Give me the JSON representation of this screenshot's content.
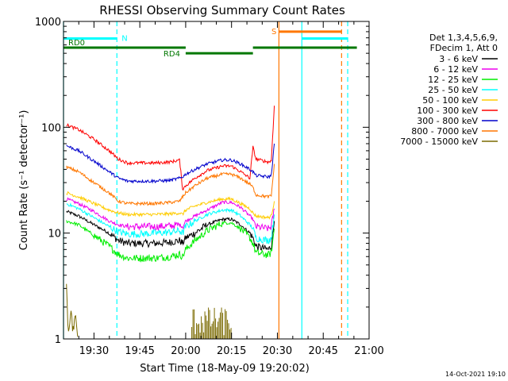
{
  "chart_data": {
    "type": "line",
    "title": "RHESSI Observing Summary Count Rates",
    "xlabel": "Start Time (18-May-09 19:20:02)",
    "ylabel": "Count Rate (s⁻¹ detector⁻¹)",
    "yscale": "log",
    "ylim": [
      1,
      1000
    ],
    "xlim": [
      "19:20:02",
      "21:00"
    ],
    "x_ticks": [
      "19:30",
      "19:45",
      "20:00",
      "20:15",
      "20:30",
      "20:45",
      "21:00"
    ],
    "y_ticks": [
      "1",
      "10",
      "100",
      "1000"
    ],
    "legend_header": [
      "Det 1,3,4,5,6,9,",
      "FDecim 1, Att 0"
    ],
    "timestamp": "14-Oct-2021 19:10",
    "series": [
      {
        "name": "3 - 6 keV",
        "color": "#000000",
        "points": [
          [
            "19:21",
            16
          ],
          [
            "19:25",
            14.5
          ],
          [
            "19:30",
            12
          ],
          [
            "19:35",
            10
          ],
          [
            "19:38",
            8.5
          ],
          [
            "19:41",
            8
          ],
          [
            "19:45",
            8
          ],
          [
            "19:50",
            8
          ],
          [
            "19:55",
            8.2
          ],
          [
            "19:58",
            8.5
          ],
          [
            "19:59",
            8
          ],
          [
            "20:00",
            9
          ],
          [
            "20:03",
            10
          ],
          [
            "20:07",
            12
          ],
          [
            "20:12",
            13.5
          ],
          [
            "20:15",
            13.5
          ],
          [
            "20:18",
            12
          ],
          [
            "20:21",
            10
          ],
          [
            "20:22",
            9
          ],
          [
            "20:23",
            7.5
          ],
          [
            "20:27",
            7
          ],
          [
            "20:28",
            7.5
          ],
          [
            "20:29",
            13
          ]
        ]
      },
      {
        "name": "6 - 12 keV",
        "color": "#ee00ee",
        "points": [
          [
            "19:21",
            21
          ],
          [
            "19:25",
            19
          ],
          [
            "19:30",
            16
          ],
          [
            "19:35",
            13
          ],
          [
            "19:38",
            12
          ],
          [
            "19:41",
            11.5
          ],
          [
            "19:45",
            11.5
          ],
          [
            "19:50",
            11.5
          ],
          [
            "19:55",
            11.7
          ],
          [
            "19:58",
            12
          ],
          [
            "19:59",
            11.5
          ],
          [
            "20:00",
            13
          ],
          [
            "20:03",
            14.5
          ],
          [
            "20:07",
            16.5
          ],
          [
            "20:12",
            19.5
          ],
          [
            "20:15",
            19.5
          ],
          [
            "20:18",
            17.5
          ],
          [
            "20:21",
            14.5
          ],
          [
            "20:22",
            13.5
          ],
          [
            "20:23",
            11.5
          ],
          [
            "20:27",
            11
          ],
          [
            "20:28",
            11.5
          ],
          [
            "20:29",
            17
          ]
        ]
      },
      {
        "name": "12 - 25 keV",
        "color": "#00ee00",
        "points": [
          [
            "19:21",
            13
          ],
          [
            "19:25",
            12
          ],
          [
            "19:30",
            9.5
          ],
          [
            "19:35",
            7.5
          ],
          [
            "19:38",
            6.3
          ],
          [
            "19:41",
            5.8
          ],
          [
            "19:45",
            5.8
          ],
          [
            "19:50",
            5.8
          ],
          [
            "19:55",
            6
          ],
          [
            "19:58",
            6.3
          ],
          [
            "19:59",
            6
          ],
          [
            "20:00",
            7
          ],
          [
            "20:03",
            8.5
          ],
          [
            "20:07",
            10.5
          ],
          [
            "20:12",
            12.5
          ],
          [
            "20:15",
            12.5
          ],
          [
            "20:18",
            11
          ],
          [
            "20:21",
            9
          ],
          [
            "20:22",
            8
          ],
          [
            "20:23",
            6.5
          ],
          [
            "20:27",
            6.2
          ],
          [
            "20:28",
            6.5
          ],
          [
            "20:29",
            11
          ]
        ]
      },
      {
        "name": "25 - 50 keV",
        "color": "#00ffff",
        "points": [
          [
            "19:21",
            19
          ],
          [
            "19:25",
            17
          ],
          [
            "19:30",
            14
          ],
          [
            "19:35",
            11.5
          ],
          [
            "19:38",
            10.3
          ],
          [
            "19:41",
            9.8
          ],
          [
            "19:45",
            9.8
          ],
          [
            "19:50",
            10
          ],
          [
            "19:55",
            10.2
          ],
          [
            "19:58",
            10.5
          ],
          [
            "19:59",
            10
          ],
          [
            "20:00",
            11.5
          ],
          [
            "20:03",
            13
          ],
          [
            "20:07",
            15
          ],
          [
            "20:12",
            16.5
          ],
          [
            "20:15",
            16.5
          ],
          [
            "20:18",
            14.5
          ],
          [
            "20:21",
            12
          ],
          [
            "20:22",
            11
          ],
          [
            "20:23",
            9
          ],
          [
            "20:27",
            8.5
          ],
          [
            "20:28",
            9
          ],
          [
            "20:29",
            15
          ]
        ]
      },
      {
        "name": "50 - 100 keV",
        "color": "#ffcc00",
        "points": [
          [
            "19:21",
            24
          ],
          [
            "19:25",
            22
          ],
          [
            "19:30",
            19
          ],
          [
            "19:35",
            16.5
          ],
          [
            "19:38",
            15.5
          ],
          [
            "19:41",
            15
          ],
          [
            "19:45",
            15
          ],
          [
            "19:50",
            15
          ],
          [
            "19:55",
            15.2
          ],
          [
            "19:58",
            15.5
          ],
          [
            "19:59",
            15
          ],
          [
            "20:00",
            16.5
          ],
          [
            "20:03",
            18
          ],
          [
            "20:07",
            19.5
          ],
          [
            "20:12",
            21
          ],
          [
            "20:15",
            21
          ],
          [
            "20:18",
            19
          ],
          [
            "20:21",
            17
          ],
          [
            "20:22",
            15.5
          ],
          [
            "20:23",
            14.5
          ],
          [
            "20:27",
            14
          ],
          [
            "20:28",
            14.5
          ],
          [
            "20:29",
            20
          ]
        ]
      },
      {
        "name": "100 - 300 keV",
        "color": "#ff0000",
        "points": [
          [
            "19:21",
            105
          ],
          [
            "19:25",
            95
          ],
          [
            "19:30",
            77
          ],
          [
            "19:35",
            60
          ],
          [
            "19:38",
            50
          ],
          [
            "19:41",
            46
          ],
          [
            "19:45",
            46
          ],
          [
            "19:50",
            46
          ],
          [
            "19:55",
            47
          ],
          [
            "19:58",
            49
          ],
          [
            "19:59",
            26
          ],
          [
            "20:00",
            28
          ],
          [
            "20:03",
            33
          ],
          [
            "20:07",
            39
          ],
          [
            "20:12",
            43
          ],
          [
            "20:15",
            43
          ],
          [
            "20:18",
            38
          ],
          [
            "20:21",
            33
          ],
          [
            "20:22",
            65
          ],
          [
            "20:23",
            50
          ],
          [
            "20:27",
            47
          ],
          [
            "20:28",
            48
          ],
          [
            "20:29",
            160
          ]
        ]
      },
      {
        "name": "300 - 800 keV",
        "color": "#0000cc",
        "points": [
          [
            "19:21",
            67
          ],
          [
            "19:25",
            60
          ],
          [
            "19:30",
            48
          ],
          [
            "19:35",
            38
          ],
          [
            "19:38",
            33
          ],
          [
            "19:41",
            31
          ],
          [
            "19:45",
            31
          ],
          [
            "19:50",
            31
          ],
          [
            "19:55",
            31.5
          ],
          [
            "19:58",
            33
          ],
          [
            "19:59",
            34
          ],
          [
            "20:00",
            36
          ],
          [
            "20:03",
            40
          ],
          [
            "20:07",
            45
          ],
          [
            "20:12",
            49
          ],
          [
            "20:15",
            49
          ],
          [
            "20:18",
            45
          ],
          [
            "20:21",
            40
          ],
          [
            "20:22",
            38
          ],
          [
            "20:23",
            35
          ],
          [
            "20:27",
            34
          ],
          [
            "20:28",
            35
          ],
          [
            "20:29",
            70
          ]
        ]
      },
      {
        "name": "800 - 7000 keV",
        "color": "#ff7700",
        "points": [
          [
            "19:21",
            42
          ],
          [
            "19:25",
            38
          ],
          [
            "19:30",
            30
          ],
          [
            "19:35",
            24
          ],
          [
            "19:38",
            20
          ],
          [
            "19:41",
            19
          ],
          [
            "19:45",
            19
          ],
          [
            "19:50",
            19
          ],
          [
            "19:55",
            19.5
          ],
          [
            "19:58",
            20
          ],
          [
            "19:59",
            22
          ],
          [
            "20:00",
            24
          ],
          [
            "20:03",
            28
          ],
          [
            "20:07",
            33
          ],
          [
            "20:12",
            36
          ],
          [
            "20:15",
            36
          ],
          [
            "20:18",
            33
          ],
          [
            "20:21",
            29
          ],
          [
            "20:22",
            27
          ],
          [
            "20:23",
            23
          ],
          [
            "20:27",
            22
          ],
          [
            "20:28",
            22.5
          ],
          [
            "20:29",
            45
          ]
        ]
      },
      {
        "name": "7000 - 15000 keV",
        "color": "#7a6a00",
        "points": [
          [
            "19:21",
            3
          ],
          [
            "19:21:40",
            1.1
          ],
          [
            "19:22:30",
            1.9
          ],
          [
            "19:23",
            1.2
          ],
          [
            "19:24",
            1.6
          ],
          [
            "19:24:40",
            1.05
          ]
        ]
      }
    ],
    "status_bars": [
      {
        "label": "N",
        "color": "#00ffff",
        "start": "19:20:02",
        "end": "19:37:30",
        "level": 690
      },
      {
        "label": "N",
        "color": "#00ffff",
        "start": "20:38",
        "end": "20:53",
        "level": 690
      },
      {
        "label": "RD0",
        "color": "#007700",
        "start": "19:20:02",
        "end": "20:00",
        "level": 565
      },
      {
        "label": "RD4",
        "color": "#007700",
        "start": "20:00",
        "end": "20:22",
        "level": 500
      },
      {
        "label": "RD0",
        "color": "#007700",
        "start": "20:22",
        "end": "20:56",
        "level": 565
      },
      {
        "label": "S",
        "color": "#ff7700",
        "start": "20:30:30",
        "end": "20:51",
        "level": 800
      }
    ],
    "vertical_markers": [
      {
        "time": "19:20:02",
        "color": "#00ffff",
        "style": "solid"
      },
      {
        "time": "19:37:30",
        "color": "#00ffff",
        "style": "dashed"
      },
      {
        "time": "20:30:30",
        "color": "#ff7700",
        "style": "solid"
      },
      {
        "time": "20:38",
        "color": "#00ffff",
        "style": "solid"
      },
      {
        "time": "20:51",
        "color": "#ff7700",
        "style": "dashed"
      },
      {
        "time": "20:53",
        "color": "#00ffff",
        "style": "dashed"
      }
    ]
  }
}
